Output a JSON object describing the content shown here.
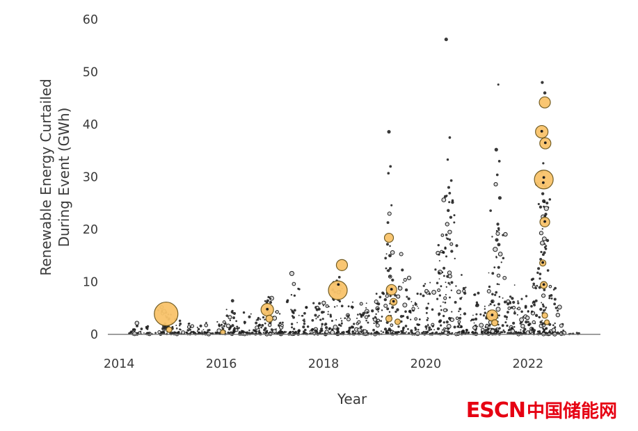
{
  "chart_data": {
    "type": "scatter",
    "title": "",
    "xlabel": "Year",
    "ylabel_lines": [
      "Renewable Energy Curtailed",
      "During Event (GWh)"
    ],
    "xlim": [
      2013.78,
      2023.35
    ],
    "ylim": [
      0,
      60
    ],
    "xticks": [
      2014,
      2016,
      2018,
      2020,
      2022
    ],
    "yticks": [
      0,
      10,
      20,
      30,
      40,
      50,
      60
    ],
    "grid": false,
    "legend_position": "none",
    "colors": {
      "dot": "#1c1c1c",
      "ring_fill": "#d8d8d8",
      "bubble_fill": "#f9c46b",
      "bubble_stroke": "#6b5418",
      "axis": "#7f7f7f",
      "label": "#3a3a3a"
    },
    "bubbles": [
      {
        "x": 2014.92,
        "y": 3.9,
        "r": 17
      },
      {
        "x": 2014.98,
        "y": 0.9,
        "r": 4
      },
      {
        "x": 2016.03,
        "y": 0.4,
        "r": 3.5
      },
      {
        "x": 2016.9,
        "y": 4.7,
        "r": 9
      },
      {
        "x": 2016.94,
        "y": 3.0,
        "r": 5
      },
      {
        "x": 2018.28,
        "y": 8.4,
        "r": 13.5
      },
      {
        "x": 2018.36,
        "y": 13.2,
        "r": 8
      },
      {
        "x": 2019.28,
        "y": 18.4,
        "r": 6.5
      },
      {
        "x": 2019.33,
        "y": 8.5,
        "r": 7.5
      },
      {
        "x": 2019.37,
        "y": 6.2,
        "r": 5
      },
      {
        "x": 2019.28,
        "y": 3.0,
        "r": 4.5
      },
      {
        "x": 2019.45,
        "y": 2.4,
        "r": 4
      },
      {
        "x": 2021.3,
        "y": 3.6,
        "r": 8
      },
      {
        "x": 2021.35,
        "y": 2.2,
        "r": 4.5
      },
      {
        "x": 2022.33,
        "y": 44.2,
        "r": 8
      },
      {
        "x": 2022.27,
        "y": 38.6,
        "r": 9
      },
      {
        "x": 2022.34,
        "y": 36.4,
        "r": 8
      },
      {
        "x": 2022.31,
        "y": 29.5,
        "r": 13.5
      },
      {
        "x": 2022.33,
        "y": 21.4,
        "r": 7
      },
      {
        "x": 2022.29,
        "y": 13.6,
        "r": 4.5
      },
      {
        "x": 2022.31,
        "y": 9.4,
        "r": 5
      },
      {
        "x": 2022.33,
        "y": 3.6,
        "r": 4
      },
      {
        "x": 2022.37,
        "y": 2.3,
        "r": 3.5
      }
    ],
    "outliers": [
      [
        2016.22,
        6.4
      ],
      [
        2017.38,
        11.6
      ],
      [
        2017.42,
        9.6
      ],
      [
        2018.26,
        10.2
      ],
      [
        2018.31,
        10.9
      ],
      [
        2019.26,
        21.3
      ],
      [
        2019.27,
        30.7
      ],
      [
        2019.28,
        38.6
      ],
      [
        2019.29,
        23.0
      ],
      [
        2019.31,
        32.0
      ],
      [
        2019.3,
        15.0
      ],
      [
        2019.33,
        24.6
      ],
      [
        2019.35,
        15.6
      ],
      [
        2019.52,
        15.3
      ],
      [
        2020.25,
        17.0
      ],
      [
        2020.26,
        15.2
      ],
      [
        2020.4,
        56.2
      ],
      [
        2020.41,
        26.4
      ],
      [
        2020.42,
        21.0
      ],
      [
        2020.43,
        33.3
      ],
      [
        2020.43,
        18.2
      ],
      [
        2020.44,
        23.6
      ],
      [
        2020.45,
        28.0
      ],
      [
        2020.46,
        25.2
      ],
      [
        2020.47,
        37.5
      ],
      [
        2020.47,
        19.5
      ],
      [
        2020.49,
        22.3
      ],
      [
        2020.5,
        29.3
      ],
      [
        2021.36,
        16.2
      ],
      [
        2021.37,
        28.6
      ],
      [
        2021.38,
        35.2
      ],
      [
        2021.39,
        18.0
      ],
      [
        2021.4,
        30.4
      ],
      [
        2021.41,
        19.2
      ],
      [
        2021.42,
        47.6
      ],
      [
        2021.43,
        17.1
      ],
      [
        2021.44,
        33.0
      ],
      [
        2021.45,
        26.0
      ],
      [
        2021.46,
        15.3
      ],
      [
        2022.25,
        14.3
      ],
      [
        2022.26,
        19.3
      ],
      [
        2022.27,
        31.0
      ],
      [
        2022.28,
        48.0
      ],
      [
        2022.28,
        17.4
      ],
      [
        2022.29,
        26.8
      ],
      [
        2022.3,
        32.6
      ],
      [
        2022.3,
        15.2
      ],
      [
        2022.31,
        25.4
      ],
      [
        2022.32,
        18.2
      ],
      [
        2022.33,
        46.0
      ],
      [
        2022.34,
        28.2
      ],
      [
        2022.35,
        16.3
      ],
      [
        2022.36,
        24.0
      ]
    ],
    "inner_dots": [
      [
        2016.9,
        4.8
      ],
      [
        2018.29,
        9.5
      ],
      [
        2019.33,
        8.6
      ],
      [
        2019.37,
        6.3
      ],
      [
        2021.3,
        3.7
      ],
      [
        2022.27,
        38.7
      ],
      [
        2022.34,
        36.5
      ],
      [
        2022.31,
        29.9
      ],
      [
        2022.3,
        28.9
      ],
      [
        2022.33,
        21.5
      ],
      [
        2022.29,
        13.7
      ],
      [
        2022.31,
        9.5
      ]
    ],
    "clusters": [
      [
        2014.3,
        0.07,
        22,
        2.2
      ],
      [
        2014.55,
        0.06,
        14,
        1.6
      ],
      [
        2014.9,
        0.09,
        40,
        5.2
      ],
      [
        2015.15,
        0.06,
        18,
        3.0
      ],
      [
        2015.45,
        0.08,
        22,
        2.6
      ],
      [
        2015.7,
        0.06,
        18,
        3.4
      ],
      [
        2015.98,
        0.06,
        20,
        2.4
      ],
      [
        2016.2,
        0.08,
        30,
        6.0
      ],
      [
        2016.45,
        0.08,
        28,
        4.2
      ],
      [
        2016.7,
        0.07,
        24,
        3.6
      ],
      [
        2016.92,
        0.09,
        42,
        7.5
      ],
      [
        2017.15,
        0.07,
        28,
        5.0
      ],
      [
        2017.4,
        0.08,
        34,
        9.0
      ],
      [
        2017.62,
        0.07,
        26,
        5.5
      ],
      [
        2017.85,
        0.07,
        26,
        6.0
      ],
      [
        2018.05,
        0.07,
        28,
        6.0
      ],
      [
        2018.3,
        0.09,
        48,
        11.0
      ],
      [
        2018.55,
        0.07,
        30,
        6.5
      ],
      [
        2018.8,
        0.07,
        30,
        7.0
      ],
      [
        2019.05,
        0.07,
        30,
        8.0
      ],
      [
        2019.3,
        0.09,
        55,
        19.0
      ],
      [
        2019.55,
        0.07,
        30,
        13.0
      ],
      [
        2019.8,
        0.07,
        28,
        8.0
      ],
      [
        2020.05,
        0.07,
        30,
        10.0
      ],
      [
        2020.28,
        0.07,
        38,
        16.0
      ],
      [
        2020.45,
        0.09,
        55,
        27.0
      ],
      [
        2020.7,
        0.07,
        34,
        12.0
      ],
      [
        2020.95,
        0.07,
        30,
        8.5
      ],
      [
        2021.2,
        0.07,
        40,
        12.0
      ],
      [
        2021.4,
        0.09,
        55,
        24.0
      ],
      [
        2021.65,
        0.07,
        34,
        10.0
      ],
      [
        2021.9,
        0.07,
        32,
        8.0
      ],
      [
        2022.1,
        0.07,
        38,
        14.0
      ],
      [
        2022.3,
        0.09,
        75,
        30.0
      ],
      [
        2022.52,
        0.06,
        26,
        9.0
      ],
      [
        2022.7,
        0.04,
        8,
        2.0
      ]
    ],
    "baseline": {
      "x_start": 2014.2,
      "x_end": 2022.7,
      "n": 230,
      "ymax": 0.5
    },
    "baseline_sparse": {
      "x_start": 2022.72,
      "x_end": 2023.1,
      "n": 6,
      "ymax": 0.3
    }
  },
  "watermark": {
    "logo": "ESCN",
    "chinese": "中国储能网"
  }
}
